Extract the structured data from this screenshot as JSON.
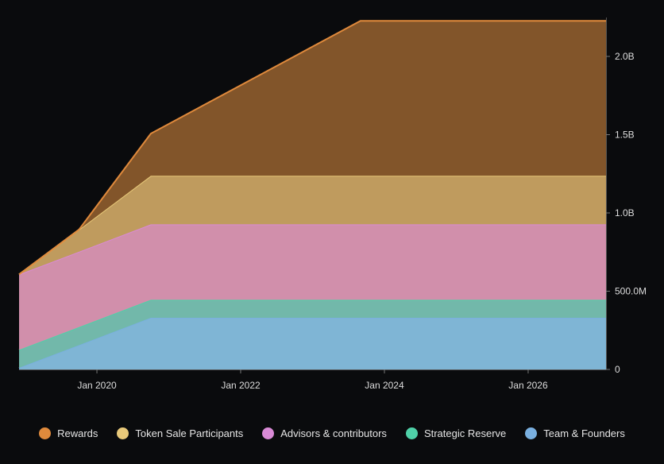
{
  "chart_data": {
    "type": "area",
    "stacked": true,
    "x": [
      "2018-12",
      "2019-10",
      "2020-10",
      "2023-09",
      "2027-02"
    ],
    "xlim": [
      "2018-12",
      "2027-02"
    ],
    "x_ticks": [
      "Jan 2020",
      "Jan 2022",
      "Jan 2024",
      "Jan 2026"
    ],
    "y_ticks": [
      "0",
      "500.0M",
      "1.0B",
      "1.5B",
      "2.0B"
    ],
    "y_tick_values": [
      0,
      500,
      1000,
      1500,
      2000
    ],
    "y_unit": "millions",
    "ylim": [
      0,
      2250
    ],
    "y_axis_position": "right",
    "grid": false,
    "legend_position": "bottom",
    "series": [
      {
        "name": "Team & Founders",
        "values": [
          10,
          155,
          330,
          330,
          330
        ],
        "color": "#7ab0e0",
        "fill": "#7fb5d5"
      },
      {
        "name": "Strategic Reserve",
        "values": [
          115,
          115,
          115,
          115,
          115
        ],
        "color": "#4fd1a8",
        "fill": "#72b8aa"
      },
      {
        "name": "Advisors & contributors",
        "values": [
          482,
          482,
          482,
          482,
          482
        ],
        "color": "#d98ad6",
        "fill": "#d18fab"
      },
      {
        "name": "Token Sale Participants",
        "values": [
          0,
          141,
          310,
          310,
          310
        ],
        "color": "#e8c97a",
        "fill": "#bf9b5e"
      },
      {
        "name": "Rewards",
        "values": [
          0,
          0,
          270,
          990,
          990
        ],
        "color": "#e08a3c",
        "fill": "#82552a"
      }
    ],
    "legend_order": [
      "Rewards",
      "Token Sale Participants",
      "Advisors & contributors",
      "Strategic Reserve",
      "Team & Founders"
    ]
  }
}
